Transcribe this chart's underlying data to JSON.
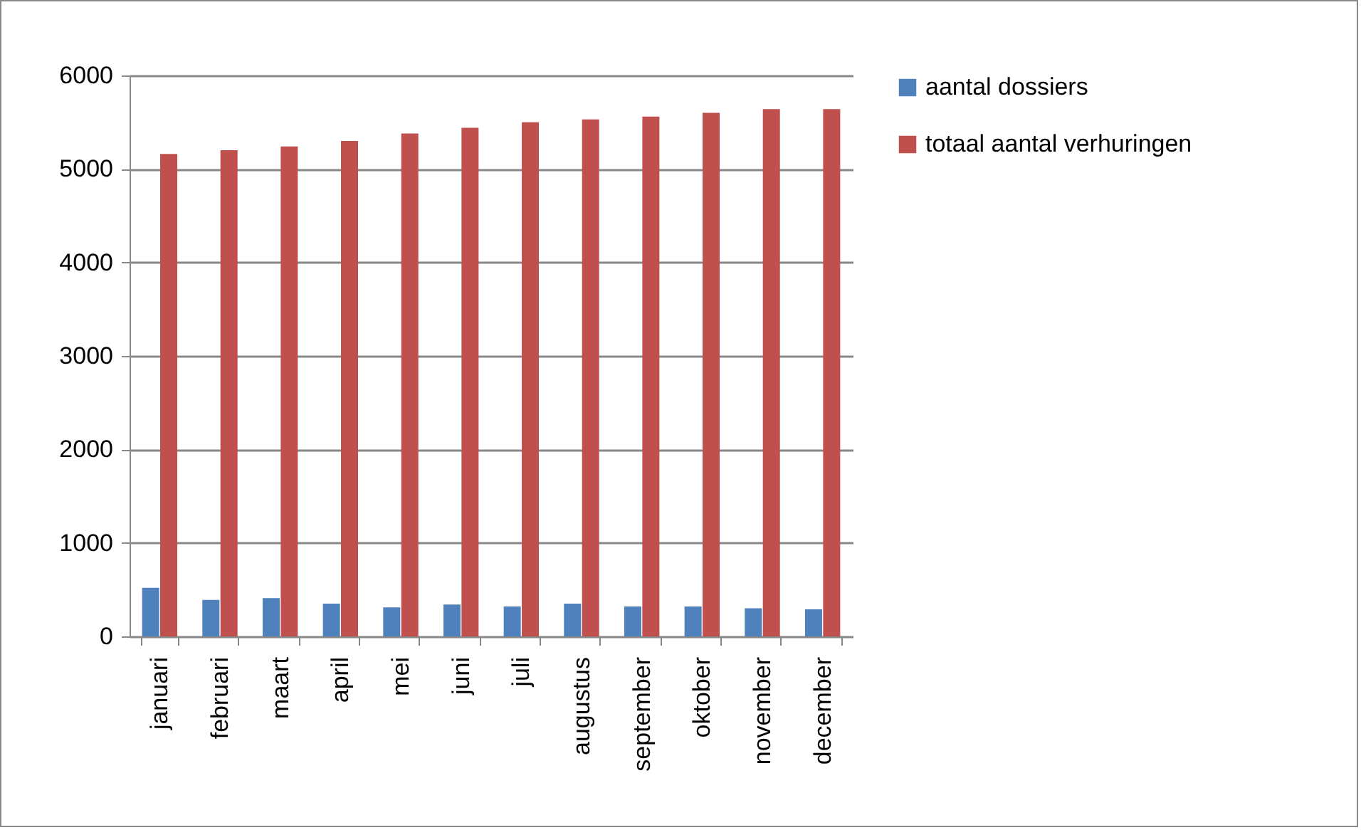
{
  "chart_data": {
    "type": "bar",
    "categories": [
      "januari",
      "februari",
      "maart",
      "april",
      "mei",
      "juni",
      "juli",
      "augustus",
      "september",
      "oktober",
      "november",
      "december"
    ],
    "series": [
      {
        "name": "aantal dossiers",
        "color": "#4f81bd",
        "values": [
          520,
          390,
          410,
          350,
          310,
          340,
          320,
          350,
          320,
          320,
          300,
          290
        ]
      },
      {
        "name": "totaal aantal verhuringen",
        "color": "#c0504d",
        "values": [
          5160,
          5200,
          5240,
          5300,
          5380,
          5440,
          5500,
          5530,
          5560,
          5600,
          5640,
          5640
        ]
      }
    ],
    "ylim": [
      0,
      6000
    ],
    "yticks": [
      0,
      1000,
      2000,
      3000,
      4000,
      5000,
      6000
    ],
    "grid": "y",
    "legend": "right"
  }
}
